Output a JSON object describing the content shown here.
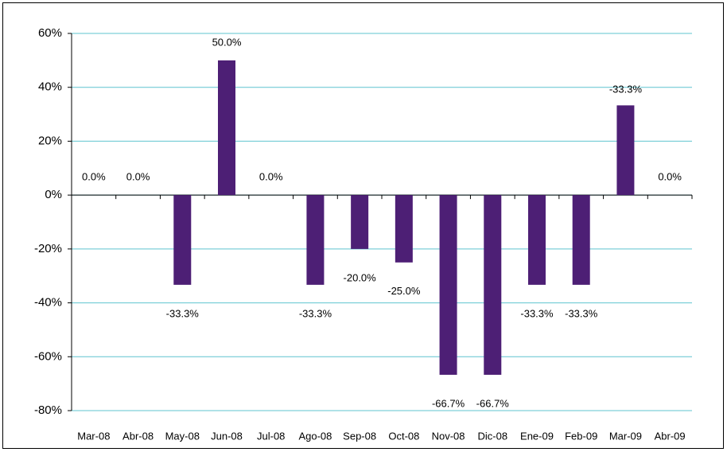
{
  "chart_data": {
    "type": "bar",
    "categories": [
      "Mar-08",
      "Abr-08",
      "May-08",
      "Jun-08",
      "Jul-08",
      "Ago-08",
      "Sep-08",
      "Oct-08",
      "Nov-08",
      "Dic-08",
      "Ene-09",
      "Feb-09",
      "Mar-09",
      "Abr-09"
    ],
    "values": [
      0,
      0,
      -33.3,
      50,
      0,
      -33.3,
      -20,
      -25,
      -66.7,
      -66.7,
      -33.3,
      -33.3,
      33.3,
      0
    ],
    "value_labels": [
      "0.0%",
      "0.0%",
      "-33.3%",
      "50.0%",
      "0.0%",
      "-33.3%",
      "-20.0%",
      "-25.0%",
      "-66.7%",
      "-66.7%",
      "-33.3%",
      "-33.3%",
      null,
      "0.0%"
    ],
    "annotation": "-33.3%",
    "color": "#4d1f75",
    "ylim": [
      -80,
      60
    ],
    "yticks": [
      {
        "value": -80,
        "label": "-80%"
      },
      {
        "value": -60,
        "label": "-60%"
      },
      {
        "value": -40,
        "label": "-40%"
      },
      {
        "value": -20,
        "label": "-20%"
      },
      {
        "value": 0,
        "label": "0%"
      },
      {
        "value": 20,
        "label": "20%"
      },
      {
        "value": 40,
        "label": "40%"
      },
      {
        "value": 60,
        "label": "60%"
      }
    ],
    "grid": true
  }
}
